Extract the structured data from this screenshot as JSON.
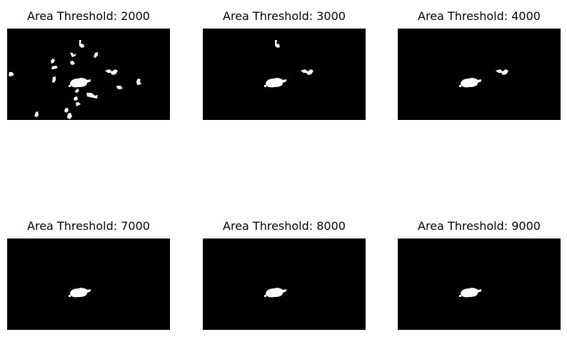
{
  "figure": {
    "background_color": "#ffffff",
    "image_background_color": "#000000",
    "blob_color": "#ffffff",
    "panels": [
      {
        "title": "Area Threshold: 2000",
        "image_alt": "binary mask with many small white blobs"
      },
      {
        "title": "Area Threshold: 3000",
        "image_alt": "binary mask with three white blobs"
      },
      {
        "title": "Area Threshold: 4000",
        "image_alt": "binary mask with two white blobs"
      },
      {
        "title": "Area Threshold: 7000",
        "image_alt": "binary mask with one white blob"
      },
      {
        "title": "Area Threshold: 8000",
        "image_alt": "binary mask with one white blob"
      },
      {
        "title": "Area Threshold: 9000",
        "image_alt": "binary mask with one white blob"
      }
    ]
  }
}
